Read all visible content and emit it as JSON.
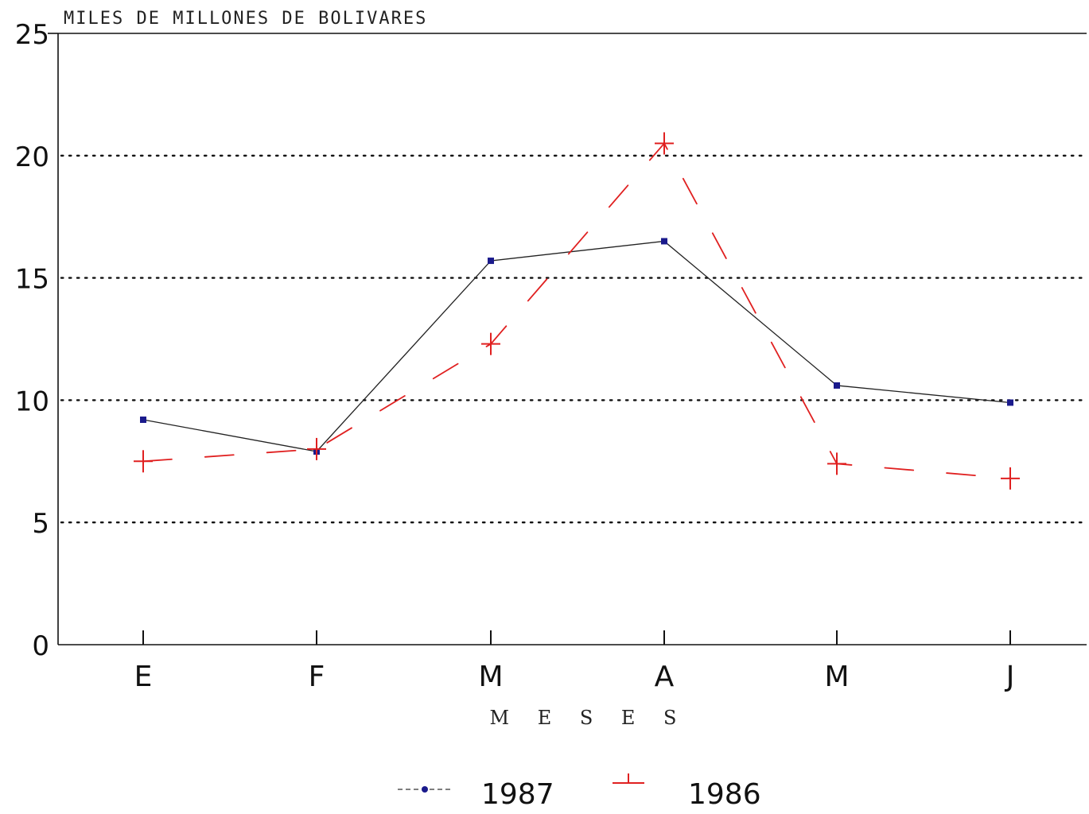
{
  "chart_data": {
    "type": "line",
    "title": "MILES DE MILLONES DE BOLIVARES",
    "xlabel": "M E S E S",
    "ylabel": "",
    "categories": [
      "E",
      "F",
      "M",
      "A",
      "M",
      "J"
    ],
    "ylim": [
      0,
      25
    ],
    "yticks": [
      0,
      5,
      10,
      15,
      20,
      25
    ],
    "grid": true,
    "legend_position": "bottom",
    "series": [
      {
        "name": "1987",
        "values": [
          9.2,
          7.9,
          15.7,
          16.5,
          10.6,
          9.9
        ],
        "color": "#1a1a8c",
        "line_color": "#222222",
        "style": "solid",
        "marker": "dot"
      },
      {
        "name": "1986",
        "values": [
          7.5,
          8.0,
          12.3,
          20.5,
          7.4,
          6.8
        ],
        "color": "#e02020",
        "style": "dashed",
        "marker": "plus"
      }
    ]
  }
}
